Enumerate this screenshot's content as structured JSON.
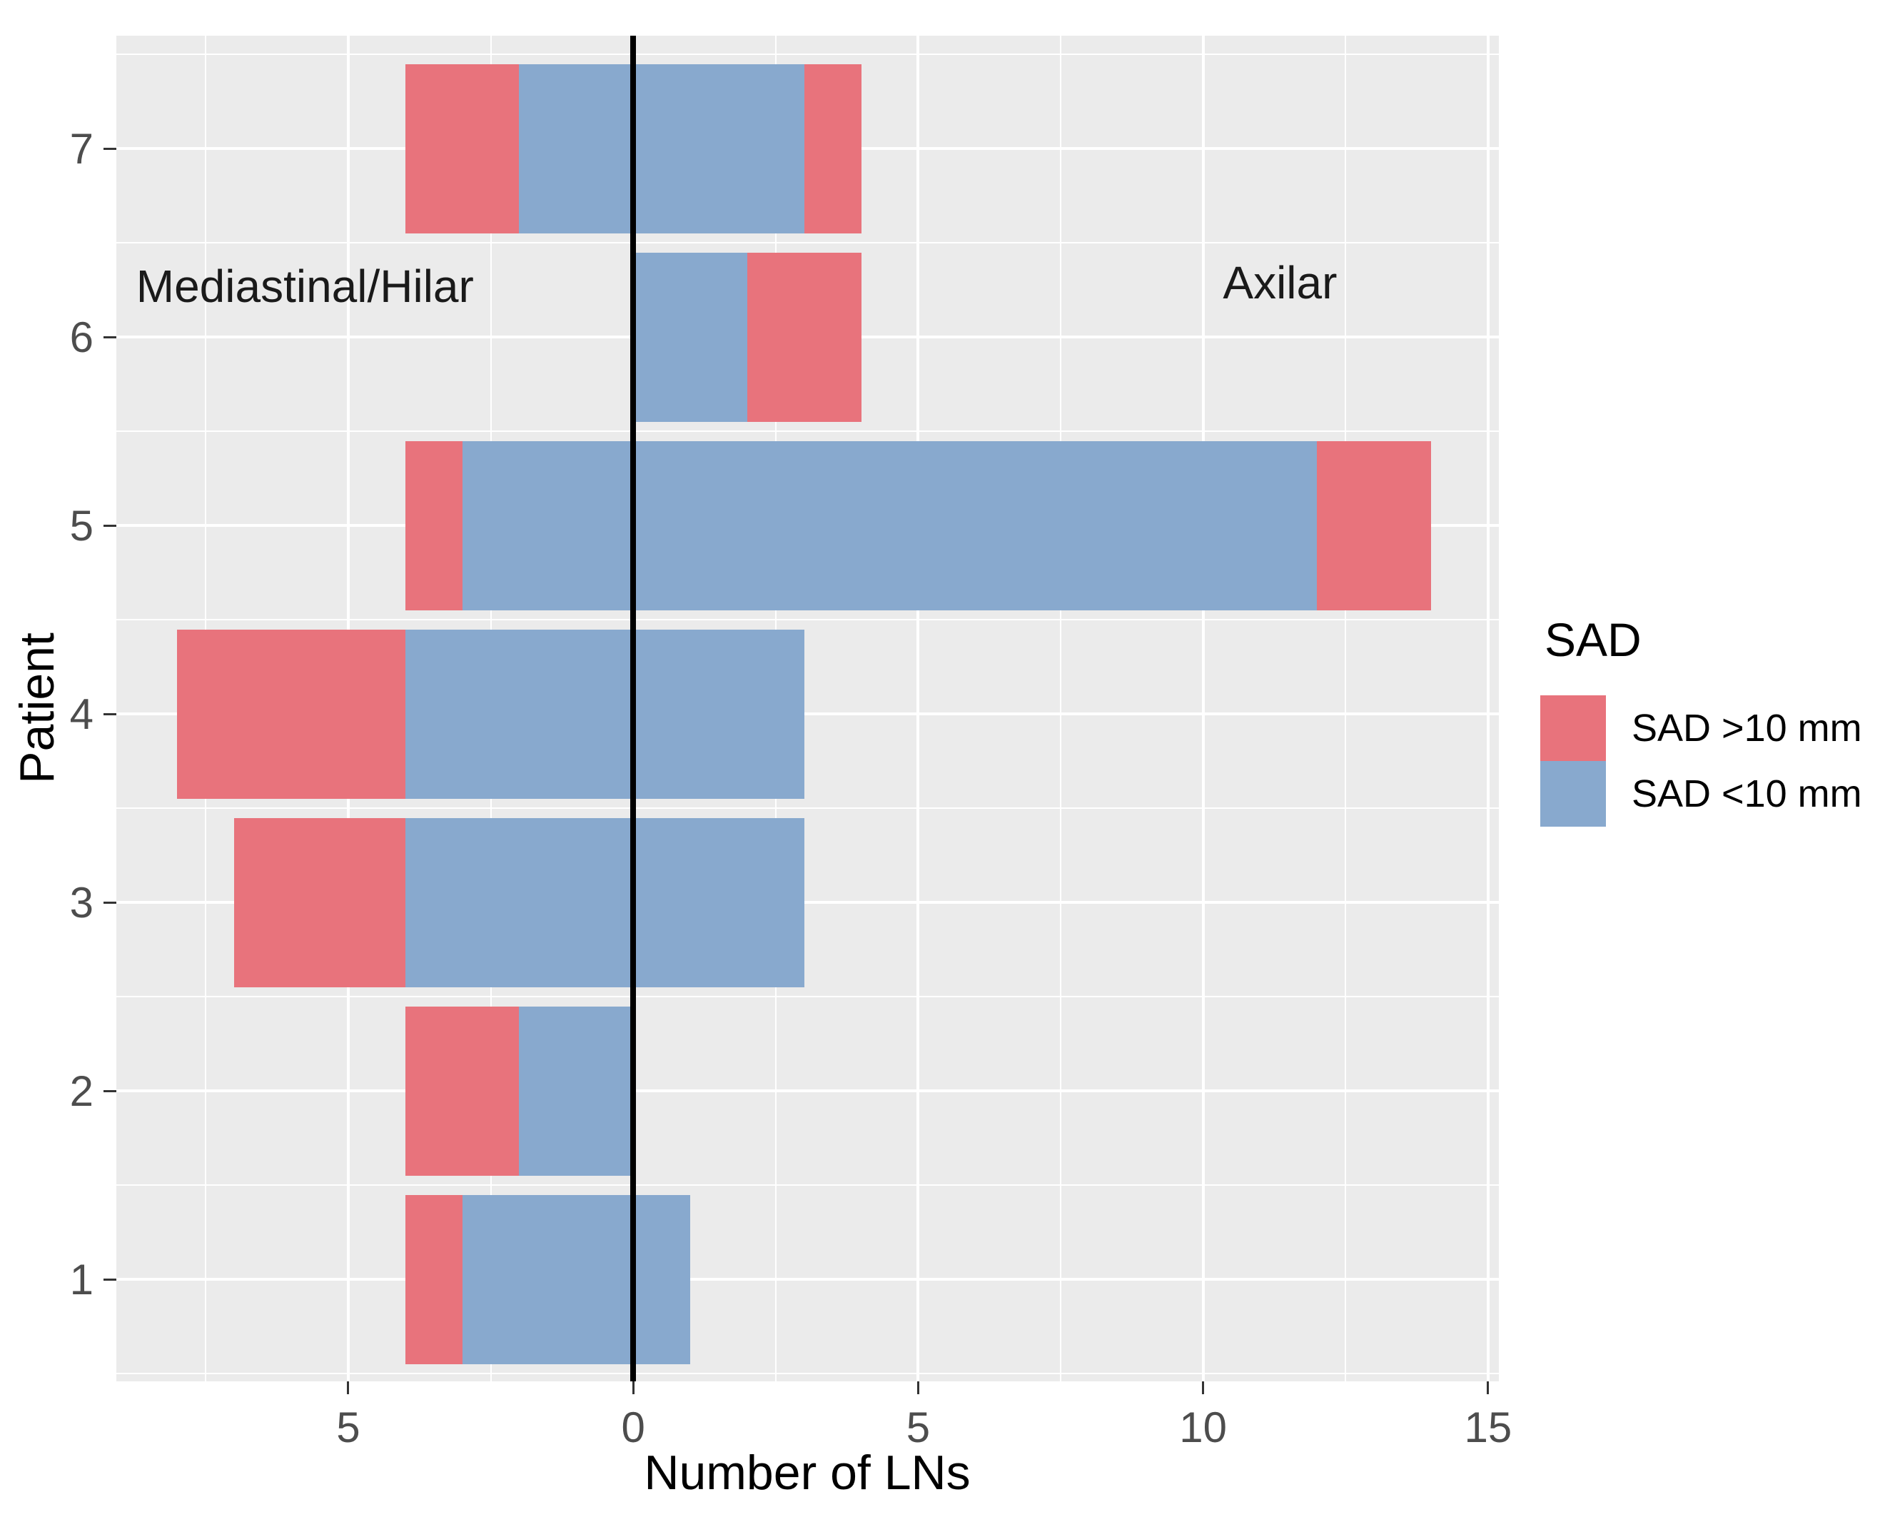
{
  "figure": {
    "background_color": "#FFFFFF",
    "panel_background_color": "#EBEBEB",
    "gridline_color": "#FFFFFF",
    "zero_line_color": "#000000",
    "tick_label_color": "#4D4D4D",
    "text_color": "#1A1A1A"
  },
  "chart_data": {
    "type": "bar",
    "variant": "diverging-stacked-horizontal",
    "title": "",
    "xlabel": "Number of LNs",
    "ylabel": "Patient",
    "grid": true,
    "x_axis": {
      "tick_values": [
        -5,
        0,
        5,
        10,
        15
      ],
      "tick_labels": [
        "5",
        "0",
        "5",
        "10",
        "15"
      ],
      "minor_tick_values": [
        -7.5,
        -2.5,
        2.5,
        7.5,
        12.5
      ],
      "range": [
        -9.07,
        15.19
      ]
    },
    "y_axis": {
      "tick_values": [
        1,
        2,
        3,
        4,
        5,
        6,
        7
      ],
      "tick_labels": [
        "1",
        "2",
        "3",
        "4",
        "5",
        "6",
        "7"
      ],
      "range": [
        0.46,
        7.6
      ],
      "bar_width": 0.9
    },
    "series_legend": {
      "title": "SAD",
      "items": [
        {
          "key": "sad_gt10mm",
          "label": "SAD >10 mm",
          "color": "#E8737C"
        },
        {
          "key": "sad_lt10mm",
          "label": "SAD <10 mm",
          "color": "#88A9CE"
        }
      ]
    },
    "left_region": "Mediastinal/Hilar",
    "right_region": "Axilar",
    "values": [
      {
        "patient": "1",
        "mediastinal_hilar": {
          "sad_lt10mm": 3,
          "sad_gt10mm": 1
        },
        "axilar": {
          "sad_lt10mm": 1,
          "sad_gt10mm": 0
        }
      },
      {
        "patient": "2",
        "mediastinal_hilar": {
          "sad_lt10mm": 2,
          "sad_gt10mm": 2
        },
        "axilar": {
          "sad_lt10mm": 0,
          "sad_gt10mm": 0
        }
      },
      {
        "patient": "3",
        "mediastinal_hilar": {
          "sad_lt10mm": 4,
          "sad_gt10mm": 3
        },
        "axilar": {
          "sad_lt10mm": 3,
          "sad_gt10mm": 0
        }
      },
      {
        "patient": "4",
        "mediastinal_hilar": {
          "sad_lt10mm": 4,
          "sad_gt10mm": 4
        },
        "axilar": {
          "sad_lt10mm": 3,
          "sad_gt10mm": 0
        }
      },
      {
        "patient": "5",
        "mediastinal_hilar": {
          "sad_lt10mm": 3,
          "sad_gt10mm": 1
        },
        "axilar": {
          "sad_lt10mm": 12,
          "sad_gt10mm": 2
        }
      },
      {
        "patient": "6",
        "mediastinal_hilar": {
          "sad_lt10mm": 0,
          "sad_gt10mm": 0
        },
        "axilar": {
          "sad_lt10mm": 2,
          "sad_gt10mm": 2
        }
      },
      {
        "patient": "7",
        "mediastinal_hilar": {
          "sad_lt10mm": 2,
          "sad_gt10mm": 2
        },
        "axilar": {
          "sad_lt10mm": 3,
          "sad_gt10mm": 1
        }
      }
    ],
    "annotations": [
      {
        "text": "Mediastinal/Hilar",
        "x": -5.76,
        "y": 6.27
      },
      {
        "text": "Axilar",
        "x": 11.35,
        "y": 6.29
      }
    ]
  }
}
